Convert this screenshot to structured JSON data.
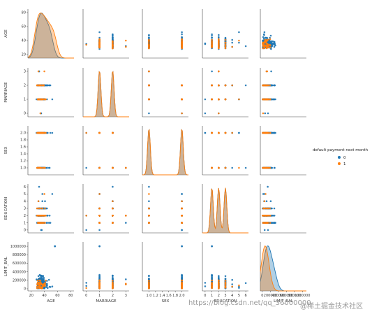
{
  "chart_data": {
    "type": "scatter",
    "variables": [
      "AGE",
      "MARRIAGE",
      "SEX",
      "EDUCATION",
      "LIMIT_BAL"
    ],
    "diag_kind": "kde",
    "hue": "default payment next month",
    "legend": {
      "title": "default payment next month",
      "placement": "right",
      "entries": [
        {
          "label": "0",
          "color": "#1f77b4"
        },
        {
          "label": "1",
          "color": "#ff7f0e"
        }
      ]
    },
    "axes": {
      "AGE": {
        "range": [
          15,
          85
        ],
        "ticks": [
          20,
          40,
          60,
          80
        ],
        "tick_labels": [
          "20",
          "40",
          "60",
          "80"
        ]
      },
      "MARRIAGE": {
        "range": [
          -0.25,
          3.25
        ],
        "ticks": [
          0,
          1,
          2,
          3
        ],
        "tick_labels": [
          "0",
          "1",
          "2",
          "3"
        ]
      },
      "SEX": {
        "range": [
          0.8,
          2.2
        ],
        "ticks": [
          1.0,
          1.2,
          1.4,
          1.6,
          1.8,
          2.0
        ],
        "tick_labels": [
          "1.0",
          "1.2",
          "1.4",
          "1.6",
          "1.8",
          "2.0"
        ]
      },
      "EDUCATION": {
        "range": [
          -0.4,
          6.4
        ],
        "ticks": [
          0,
          1,
          2,
          3,
          4,
          5,
          6
        ],
        "tick_labels": [
          "0",
          "1",
          "2",
          "3",
          "4",
          "5",
          "6"
        ]
      },
      "LIMIT_BAL": {
        "range": [
          -50000,
          1100000
        ],
        "ticks": [
          0,
          200000,
          400000,
          600000,
          800000,
          1000000
        ],
        "tick_labels": [
          "0",
          "200000",
          "400000",
          "600000",
          "800000",
          "1000000"
        ]
      }
    },
    "distributions": {
      "AGE": {
        "0": [
          29,
          33,
          36,
          40,
          45,
          50
        ],
        "1": [
          28,
          32,
          37,
          42,
          48,
          55
        ]
      },
      "MARRIAGE": {
        "0": [
          1,
          2
        ],
        "1": [
          1,
          2
        ]
      },
      "SEX": {
        "0": [
          1,
          2
        ],
        "1": [
          1,
          2
        ]
      },
      "EDUCATION": {
        "0": [
          1,
          2,
          3
        ],
        "1": [
          1,
          2,
          3
        ]
      },
      "LIMIT_BAL": {
        "0": [
          50000,
          100000,
          150000,
          200000,
          300000
        ],
        "1": [
          20000,
          50000,
          80000,
          150000
        ]
      }
    },
    "extreme_points": [
      {
        "x": "AGE",
        "y": "LIMIT_BAL",
        "x_value": 56,
        "y_value": 1000000,
        "series": "0"
      },
      {
        "x": "MARRIAGE",
        "y": "LIMIT_BAL",
        "x_value": 1,
        "y_value": 1000000,
        "series": "0"
      },
      {
        "x": "EDUCATION",
        "y": "LIMIT_BAL",
        "x_value": 1,
        "y_value": 1000000,
        "series": "0"
      },
      {
        "x": "SEX",
        "y": "LIMIT_BAL",
        "x_value": 2,
        "y_value": 1000000,
        "series": "0"
      }
    ]
  },
  "watermark": {
    "url_text": "https://blog.csdn.net/qq_36000000",
    "site_text": "@稀土掘金技术社区"
  }
}
